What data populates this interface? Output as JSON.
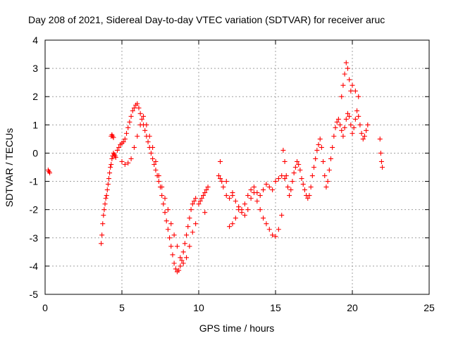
{
  "chart_data": {
    "type": "scatter",
    "title": "Day 208 of 2021, Sidereal Day-to-day VTEC variation (SDTVAR) for receiver aruc",
    "xlabel": "GPS time / hours",
    "ylabel": "SDTVAR / TECUs",
    "xlim": [
      0,
      25
    ],
    "ylim": [
      -5,
      4
    ],
    "xticks": [
      "0",
      "5",
      "10",
      "15",
      "20",
      "25"
    ],
    "yticks": [
      "-5",
      "-4",
      "-3",
      "-2",
      "-1",
      "0",
      "1",
      "2",
      "3",
      "4"
    ],
    "grid": true,
    "marker": "plus",
    "color": "#ff0000",
    "series": [
      {
        "name": "SDTVAR",
        "x": [
          0.2,
          0.25,
          0.3,
          3.65,
          3.7,
          3.75,
          3.8,
          3.85,
          3.9,
          3.95,
          4.0,
          4.05,
          4.1,
          4.15,
          4.2,
          4.25,
          4.3,
          4.35,
          4.4,
          4.45,
          4.5,
          4.55,
          4.6,
          4.3,
          4.35,
          4.4,
          4.45,
          4.7,
          4.8,
          4.9,
          5.0,
          5.1,
          5.2,
          5.3,
          5.4,
          5.5,
          5.6,
          5.7,
          5.8,
          5.9,
          6.0,
          6.1,
          6.2,
          6.3,
          6.4,
          6.5,
          6.6,
          6.7,
          6.8,
          6.9,
          7.0,
          7.1,
          7.2,
          7.3,
          7.4,
          7.5,
          7.6,
          7.7,
          7.8,
          7.9,
          8.0,
          8.1,
          8.2,
          8.3,
          8.4,
          8.5,
          8.6,
          8.7,
          8.8,
          8.9,
          9.0,
          9.1,
          9.2,
          9.3,
          9.4,
          9.5,
          9.6,
          9.7,
          9.8,
          5.0,
          5.2,
          5.4,
          5.6,
          5.8,
          6.0,
          6.2,
          6.4,
          6.6,
          6.8,
          7.0,
          7.2,
          7.4,
          7.6,
          7.8,
          8.0,
          8.2,
          8.4,
          8.6,
          8.8,
          9.0,
          9.2,
          9.4,
          10.0,
          10.1,
          10.2,
          10.3,
          10.4,
          10.5,
          10.6,
          11.3,
          11.4,
          11.5,
          11.6,
          11.8,
          12.0,
          12.2,
          12.4,
          12.6,
          12.8,
          13.0,
          13.2,
          13.4,
          13.6,
          13.8,
          14.0,
          14.2,
          14.4,
          14.6,
          14.8,
          15.0,
          15.2,
          15.4,
          15.6,
          12.0,
          12.2,
          12.4,
          12.6,
          12.8,
          13.0,
          13.2,
          13.4,
          13.6,
          13.8,
          14.0,
          14.2,
          14.4,
          14.6,
          14.8,
          15.0,
          15.2,
          15.4,
          15.5,
          15.6,
          15.7,
          15.8,
          15.9,
          16.0,
          16.1,
          16.2,
          16.3,
          16.4,
          16.5,
          16.6,
          16.7,
          16.8,
          16.9,
          17.0,
          17.1,
          17.2,
          17.3,
          17.4,
          17.5,
          17.6,
          17.7,
          17.8,
          17.9,
          18.0,
          18.1,
          18.2,
          18.3,
          18.4,
          18.5,
          18.6,
          18.7,
          18.8,
          18.9,
          19.0,
          19.1,
          19.2,
          19.3,
          19.4,
          19.5,
          19.6,
          19.7,
          19.8,
          19.9,
          20.0,
          20.1,
          20.2,
          20.3,
          20.4,
          20.5,
          20.6,
          20.7,
          20.8,
          20.9,
          21.0,
          21.8,
          21.85,
          21.9,
          21.95,
          19.3,
          19.4,
          19.5,
          19.6,
          19.7,
          19.8,
          19.9,
          20.0,
          20.2,
          20.4,
          11.4,
          11.8,
          12.2,
          9.6,
          9.8,
          10.4
        ],
        "y": [
          -0.6,
          -0.65,
          -0.7,
          -3.2,
          -2.9,
          -2.5,
          -2.2,
          -2.0,
          -1.8,
          -1.6,
          -1.5,
          -1.3,
          -1.1,
          -0.9,
          -0.7,
          -0.5,
          -0.4,
          -0.2,
          -0.1,
          0.0,
          -0.05,
          -0.1,
          -0.15,
          0.6,
          0.65,
          0.6,
          0.55,
          0.1,
          0.2,
          0.3,
          0.35,
          0.4,
          0.5,
          0.7,
          0.9,
          1.1,
          1.3,
          1.5,
          1.6,
          1.7,
          1.75,
          1.6,
          1.4,
          1.2,
          1.0,
          0.8,
          0.6,
          0.4,
          0.2,
          0.0,
          -0.2,
          -0.4,
          -0.6,
          -0.8,
          -1.0,
          -1.2,
          -1.5,
          -1.8,
          -2.1,
          -2.4,
          -2.7,
          -3.0,
          -3.3,
          -3.6,
          -3.9,
          -4.1,
          -4.2,
          -4.15,
          -4.0,
          -3.8,
          -3.5,
          -3.2,
          -2.9,
          -2.6,
          -2.3,
          -2.0,
          -1.8,
          -1.7,
          -1.6,
          -0.3,
          -0.4,
          -0.35,
          -0.2,
          0.2,
          0.6,
          1.0,
          1.3,
          1.0,
          0.6,
          0.2,
          -0.3,
          -0.8,
          -1.2,
          -1.6,
          -2.0,
          -2.5,
          -2.9,
          -3.3,
          -3.7,
          -3.9,
          -3.7,
          -3.3,
          -1.8,
          -1.7,
          -1.6,
          -1.5,
          -1.4,
          -1.3,
          -1.2,
          -0.8,
          -0.9,
          -1.0,
          -1.2,
          -1.5,
          -1.6,
          -1.4,
          -1.7,
          -1.9,
          -2.0,
          -1.8,
          -1.5,
          -1.3,
          -1.2,
          -1.4,
          -1.5,
          -1.3,
          -1.1,
          -1.2,
          -1.3,
          -1.0,
          -0.9,
          -0.8,
          -0.9,
          -2.6,
          -2.5,
          -2.3,
          -2.0,
          -2.1,
          -2.2,
          -2.0,
          -1.6,
          -1.4,
          -1.7,
          -2.0,
          -2.3,
          -2.5,
          -2.7,
          -2.9,
          -2.95,
          -2.7,
          -2.2,
          0.1,
          -0.3,
          -0.8,
          -1.2,
          -1.5,
          -1.3,
          -1.0,
          -0.7,
          -0.5,
          -0.3,
          -0.4,
          -0.6,
          -0.9,
          -1.1,
          -1.3,
          -1.5,
          -1.6,
          -1.5,
          -1.2,
          -0.8,
          -0.5,
          -0.2,
          0.1,
          0.3,
          0.5,
          0.2,
          -0.3,
          -0.8,
          -1.2,
          -1.0,
          -0.6,
          -0.2,
          0.2,
          0.6,
          0.9,
          1.1,
          1.2,
          1.0,
          0.8,
          0.6,
          0.9,
          1.2,
          1.4,
          1.3,
          1.0,
          0.7,
          0.9,
          1.2,
          1.5,
          1.3,
          1.0,
          0.7,
          0.5,
          0.6,
          0.8,
          1.0,
          0.5,
          0.0,
          -0.3,
          -0.5,
          2.0,
          2.4,
          2.8,
          3.2,
          3.0,
          2.6,
          2.2,
          2.4,
          2.2,
          2.0,
          -0.3,
          -1.0,
          -1.5,
          -2.8,
          -2.5,
          -2.1
        ]
      }
    ]
  }
}
